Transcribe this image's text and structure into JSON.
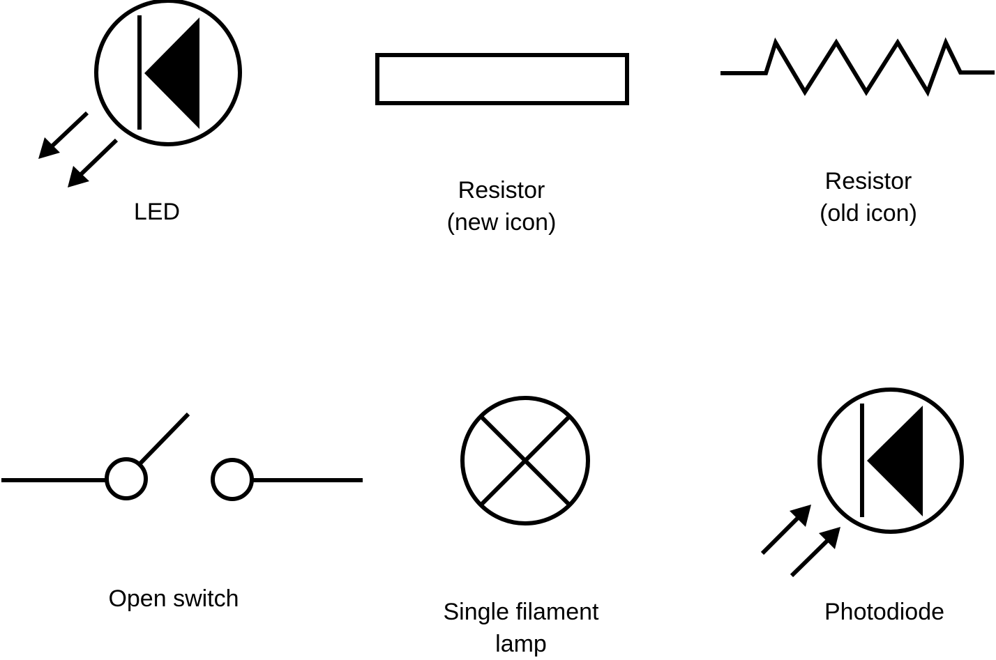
{
  "symbols": {
    "led": {
      "label": "LED"
    },
    "resistor_new": {
      "line1": "Resistor",
      "line2": "(new icon)"
    },
    "resistor_old": {
      "line1": "Resistor",
      "line2": "(old icon)"
    },
    "open_switch": {
      "label": "Open switch"
    },
    "lamp": {
      "line1": "Single filament",
      "line2": "lamp"
    },
    "photodiode": {
      "label": "Photodiode"
    }
  },
  "colors": {
    "stroke": "#000000",
    "background": "#ffffff"
  }
}
